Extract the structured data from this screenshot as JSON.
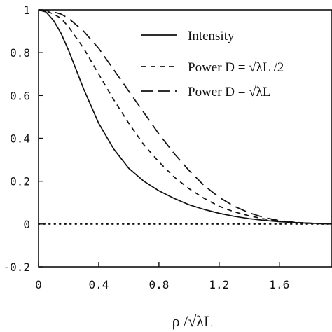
{
  "chart_data": {
    "type": "line",
    "title": "",
    "xlabel": "ρ /√λL",
    "ylabel": "",
    "xlim": [
      0,
      1.95
    ],
    "ylim": [
      -0.2,
      1
    ],
    "xticks": [
      0,
      0.4,
      0.8,
      1.2,
      1.6
    ],
    "xtick_labels": [
      "0",
      "0.4",
      "0.8",
      "1.2",
      "1.6"
    ],
    "yticks": [
      -0.2,
      0,
      0.2,
      0.4,
      0.6,
      0.8,
      1
    ],
    "ytick_labels": [
      "-0.2",
      "0",
      "0.2",
      "0.4",
      "0.6",
      "0.8",
      "1"
    ],
    "grid": false,
    "legend_position": "top-right",
    "reference_line": {
      "y": 0,
      "style": "dotted"
    },
    "series": [
      {
        "name": "Intensity",
        "style": "solid",
        "x": [
          0,
          0.05,
          0.1,
          0.15,
          0.2,
          0.25,
          0.3,
          0.35,
          0.4,
          0.5,
          0.6,
          0.7,
          0.8,
          0.9,
          1.0,
          1.1,
          1.2,
          1.3,
          1.4,
          1.5,
          1.6,
          1.7,
          1.8,
          1.95
        ],
        "y": [
          1.0,
          0.99,
          0.95,
          0.89,
          0.81,
          0.72,
          0.63,
          0.55,
          0.47,
          0.35,
          0.26,
          0.2,
          0.155,
          0.12,
          0.09,
          0.068,
          0.05,
          0.036,
          0.025,
          0.017,
          0.011,
          0.007,
          0.004,
          0.0
        ]
      },
      {
        "name": "Power D = √λL /2",
        "style": "short-dash",
        "x": [
          0,
          0.05,
          0.1,
          0.15,
          0.2,
          0.3,
          0.4,
          0.5,
          0.6,
          0.7,
          0.8,
          0.9,
          1.0,
          1.1,
          1.2,
          1.3,
          1.4,
          1.5,
          1.6,
          1.7,
          1.8,
          1.95
        ],
        "y": [
          1.0,
          0.995,
          0.98,
          0.96,
          0.92,
          0.82,
          0.7,
          0.58,
          0.47,
          0.37,
          0.29,
          0.22,
          0.165,
          0.12,
          0.083,
          0.057,
          0.038,
          0.024,
          0.014,
          0.008,
          0.004,
          0.0
        ]
      },
      {
        "name": "Power D = √λL",
        "style": "long-dash",
        "x": [
          0,
          0.05,
          0.1,
          0.15,
          0.2,
          0.3,
          0.4,
          0.5,
          0.6,
          0.7,
          0.8,
          0.9,
          1.0,
          1.1,
          1.2,
          1.3,
          1.4,
          1.5,
          1.6,
          1.7,
          1.8,
          1.95
        ],
        "y": [
          1.0,
          0.998,
          0.99,
          0.98,
          0.96,
          0.9,
          0.82,
          0.72,
          0.62,
          0.52,
          0.42,
          0.33,
          0.25,
          0.18,
          0.125,
          0.083,
          0.052,
          0.03,
          0.016,
          0.008,
          0.003,
          0.0
        ]
      }
    ]
  }
}
